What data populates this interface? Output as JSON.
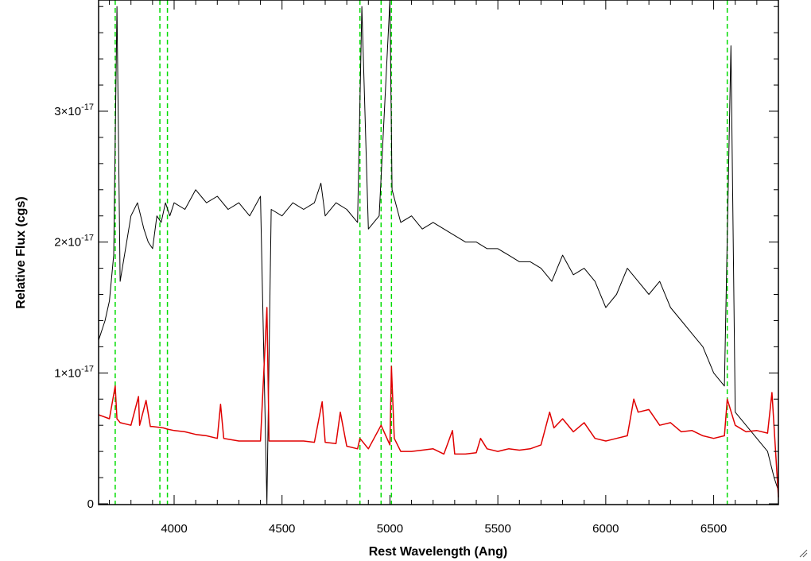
{
  "chart_data": {
    "type": "line",
    "title": "",
    "xlabel": "Rest Wavelength (Ang)",
    "ylabel": "Relative Flux (cgs)",
    "xlim": [
      3650,
      6800
    ],
    "ylim": [
      0,
      3.85e-17
    ],
    "x_ticks": [
      {
        "value": 4000,
        "label": "4000"
      },
      {
        "value": 4500,
        "label": "4500"
      },
      {
        "value": 5000,
        "label": "5000"
      },
      {
        "value": 5500,
        "label": "5500"
      },
      {
        "value": 6000,
        "label": "6000"
      },
      {
        "value": 6500,
        "label": "6500"
      }
    ],
    "y_ticks": [
      {
        "value": 0,
        "mantissa": "0",
        "exponent": ""
      },
      {
        "value": 1e-17,
        "mantissa": "1×10",
        "exponent": "-17"
      },
      {
        "value": 2e-17,
        "mantissa": "2×10",
        "exponent": "-17"
      },
      {
        "value": 3e-17,
        "mantissa": "3×10",
        "exponent": "-17"
      }
    ],
    "grid": false,
    "colors": {
      "observed": "#000000",
      "model": "#e00000",
      "lines": "#00dd00"
    },
    "series": [
      {
        "key": "observed",
        "x": [
          3650,
          3680,
          3700,
          3720,
          3735,
          3750,
          3780,
          3800,
          3830,
          3860,
          3880,
          3900,
          3920,
          3940,
          3960,
          3980,
          4000,
          4050,
          4100,
          4150,
          4200,
          4250,
          4300,
          4350,
          4400,
          4430,
          4450,
          4500,
          4550,
          4600,
          4650,
          4680,
          4700,
          4750,
          4800,
          4850,
          4870,
          4900,
          4950,
          5000,
          5010,
          5050,
          5100,
          5150,
          5200,
          5250,
          5300,
          5350,
          5400,
          5450,
          5500,
          5550,
          5600,
          5650,
          5700,
          5750,
          5800,
          5850,
          5900,
          5950,
          6000,
          6050,
          6100,
          6150,
          6200,
          6250,
          6300,
          6350,
          6400,
          6450,
          6500,
          6550,
          6580,
          6600,
          6650,
          6700,
          6750,
          6780,
          6800
        ],
        "y": [
          1.25e-17,
          1.4e-17,
          1.55e-17,
          1.9e-17,
          3.8e-17,
          1.7e-17,
          2e-17,
          2.2e-17,
          2.3e-17,
          2.1e-17,
          2e-17,
          1.95e-17,
          2.2e-17,
          2.15e-17,
          2.3e-17,
          2.2e-17,
          2.3e-17,
          2.25e-17,
          2.4e-17,
          2.3e-17,
          2.35e-17,
          2.25e-17,
          2.3e-17,
          2.2e-17,
          2.35e-17,
          0.0,
          2.25e-17,
          2.2e-17,
          2.3e-17,
          2.25e-17,
          2.3e-17,
          2.45e-17,
          2.2e-17,
          2.3e-17,
          2.25e-17,
          2.15e-17,
          3.8e-17,
          2.1e-17,
          2.2e-17,
          3.85e-17,
          2.4e-17,
          2.15e-17,
          2.2e-17,
          2.1e-17,
          2.15e-17,
          2.1e-17,
          2.05e-17,
          2e-17,
          2e-17,
          1.95e-17,
          1.95e-17,
          1.9e-17,
          1.85e-17,
          1.85e-17,
          1.8e-17,
          1.7e-17,
          1.9e-17,
          1.75e-17,
          1.8e-17,
          1.7e-17,
          1.5e-17,
          1.6e-17,
          1.8e-17,
          1.7e-17,
          1.6e-17,
          1.7e-17,
          1.5e-17,
          1.4e-17,
          1.3e-17,
          1.2e-17,
          1e-17,
          9e-18,
          3.5e-17,
          7e-18,
          6e-18,
          5e-18,
          4e-18,
          2e-18,
          1e-18
        ]
      },
      {
        "key": "model",
        "x": [
          3650,
          3700,
          3727,
          3735,
          3750,
          3800,
          3835,
          3840,
          3870,
          3890,
          3900,
          3950,
          3970,
          4000,
          4050,
          4100,
          4150,
          4200,
          4215,
          4230,
          4300,
          4350,
          4400,
          4430,
          4440,
          4500,
          4550,
          4600,
          4650,
          4686,
          4700,
          4750,
          4770,
          4800,
          4850,
          4861,
          4900,
          4959,
          5000,
          5007,
          5020,
          5050,
          5100,
          5150,
          5200,
          5250,
          5290,
          5300,
          5350,
          5400,
          5420,
          5450,
          5500,
          5550,
          5600,
          5650,
          5700,
          5740,
          5760,
          5800,
          5850,
          5900,
          5950,
          6000,
          6050,
          6100,
          6130,
          6150,
          6200,
          6250,
          6300,
          6350,
          6400,
          6450,
          6500,
          6550,
          6563,
          6600,
          6650,
          6700,
          6750,
          6770,
          6800
        ],
        "y": [
          6.8e-18,
          6.5e-18,
          9e-18,
          6.5e-18,
          6.2e-18,
          6e-18,
          8.2e-18,
          6e-18,
          7.9e-18,
          5.9e-18,
          5.9e-18,
          5.8e-18,
          5.7e-18,
          5.6e-18,
          5.5e-18,
          5.3e-18,
          5.2e-18,
          5e-18,
          7.6e-18,
          5e-18,
          4.8e-18,
          4.8e-18,
          4.8e-18,
          1.5e-17,
          4.8e-18,
          4.8e-18,
          4.8e-18,
          4.8e-18,
          4.7e-18,
          7.8e-18,
          4.7e-18,
          4.6e-18,
          7e-18,
          4.4e-18,
          4.2e-18,
          5e-18,
          4.2e-18,
          6e-18,
          4.5e-18,
          1.05e-17,
          5e-18,
          4e-18,
          4e-18,
          4.1e-18,
          4.2e-18,
          3.8e-18,
          5.6e-18,
          3.8e-18,
          3.8e-18,
          3.9e-18,
          5e-18,
          4.2e-18,
          4e-18,
          4.2e-18,
          4.1e-18,
          4.2e-18,
          4.5e-18,
          7e-18,
          5.8e-18,
          6.5e-18,
          5.5e-18,
          6.2e-18,
          5e-18,
          4.8e-18,
          5e-18,
          5.2e-18,
          8e-18,
          7e-18,
          7.2e-18,
          6e-18,
          6.2e-18,
          5.5e-18,
          5.6e-18,
          5.2e-18,
          5e-18,
          5.2e-18,
          8e-18,
          6e-18,
          5.5e-18,
          5.6e-18,
          5.4e-18,
          8.5e-18,
          5e-19
        ]
      }
    ],
    "vertical_lines": [
      3727,
      3934,
      3969,
      4861,
      4959,
      5007,
      6563
    ]
  }
}
